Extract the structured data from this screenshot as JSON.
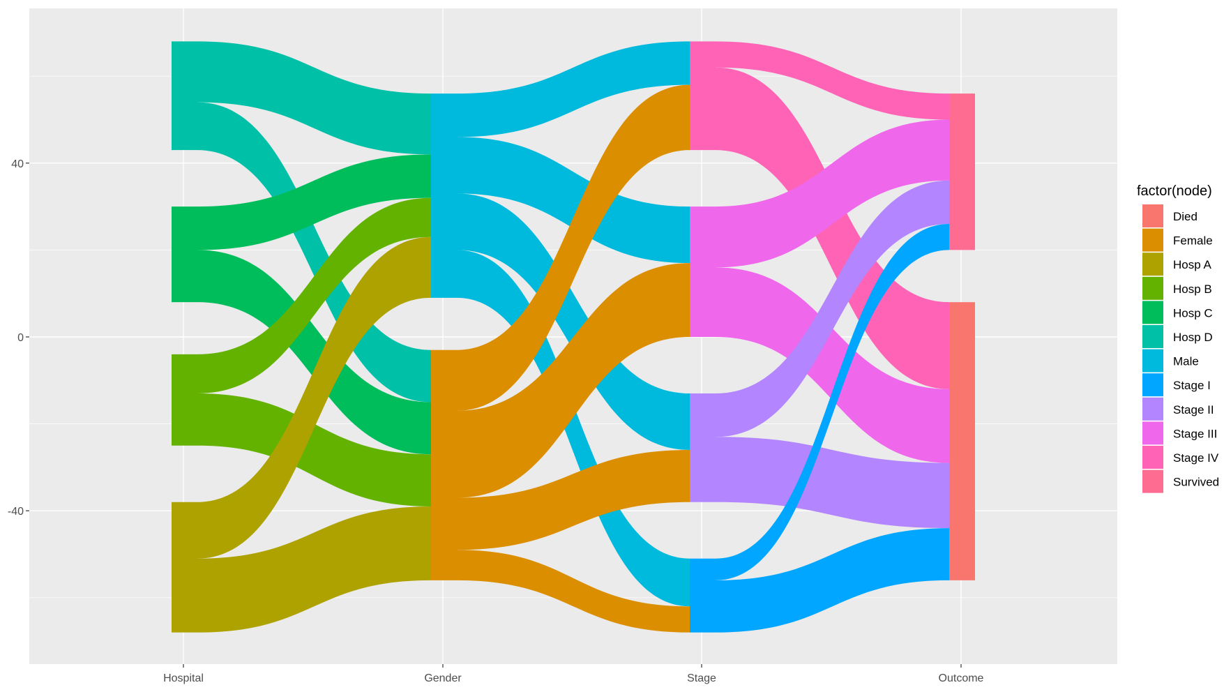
{
  "chart_data": {
    "type": "sankey",
    "axes": [
      "Hospital",
      "Gender",
      "Stage",
      "Outcome"
    ],
    "ylim": [
      -75,
      75
    ],
    "y_ticks": [
      {
        "value": -40,
        "label": "-40"
      },
      {
        "value": 0,
        "label": "0"
      },
      {
        "value": 40,
        "label": "40"
      }
    ],
    "grid": true,
    "legend_title": "factor(node)",
    "legend_position": "right",
    "categories": [
      {
        "name": "Died",
        "color": "#F8766D"
      },
      {
        "name": "Female",
        "color": "#DB8E00"
      },
      {
        "name": "Hosp A",
        "color": "#AEA200"
      },
      {
        "name": "Hosp B",
        "color": "#64B200"
      },
      {
        "name": "Hosp C",
        "color": "#00BD5C"
      },
      {
        "name": "Hosp D",
        "color": "#00C1A7"
      },
      {
        "name": "Male",
        "color": "#00BADE"
      },
      {
        "name": "Stage I",
        "color": "#00A6FF"
      },
      {
        "name": "Stage II",
        "color": "#B385FF"
      },
      {
        "name": "Stage III",
        "color": "#EF67EB"
      },
      {
        "name": "Stage IV",
        "color": "#FF63B6"
      },
      {
        "name": "Survived",
        "color": "#FF6C91"
      }
    ],
    "nodes": [
      {
        "axis": 0,
        "name": "Hosp D",
        "y0": 43,
        "y1": 68
      },
      {
        "axis": 0,
        "name": "Hosp C",
        "y0": 8,
        "y1": 30
      },
      {
        "axis": 0,
        "name": "Hosp B",
        "y0": -25,
        "y1": -4
      },
      {
        "axis": 0,
        "name": "Hosp A",
        "y0": -68,
        "y1": -38
      },
      {
        "axis": 1,
        "name": "Male",
        "y0": 9,
        "y1": 56
      },
      {
        "axis": 1,
        "name": "Female",
        "y0": -56,
        "y1": -3
      },
      {
        "axis": 2,
        "name": "Stage IV",
        "y0": 43,
        "y1": 68
      },
      {
        "axis": 2,
        "name": "Stage III",
        "y0": 0,
        "y1": 30
      },
      {
        "axis": 2,
        "name": "Stage II",
        "y0": -38,
        "y1": -13
      },
      {
        "axis": 2,
        "name": "Stage I",
        "y0": -68,
        "y1": -51
      },
      {
        "axis": 3,
        "name": "Survived",
        "y0": 20,
        "y1": 56
      },
      {
        "axis": 3,
        "name": "Died",
        "y0": -56,
        "y1": 8
      }
    ],
    "flows": [
      {
        "color": "Hosp D",
        "from_axis": 0,
        "from": [
          54,
          68
        ],
        "to": [
          42,
          56
        ]
      },
      {
        "color": "Hosp D",
        "from_axis": 0,
        "from": [
          43,
          54
        ],
        "to": [
          -15,
          -3
        ]
      },
      {
        "color": "Hosp C",
        "from_axis": 0,
        "from": [
          20,
          30
        ],
        "to": [
          32,
          42
        ]
      },
      {
        "color": "Hosp C",
        "from_axis": 0,
        "from": [
          8,
          20
        ],
        "to": [
          -27,
          -15
        ]
      },
      {
        "color": "Hosp B",
        "from_axis": 0,
        "from": [
          -13,
          -4
        ],
        "to": [
          23,
          32
        ]
      },
      {
        "color": "Hosp B",
        "from_axis": 0,
        "from": [
          -25,
          -13
        ],
        "to": [
          -39,
          -27
        ]
      },
      {
        "color": "Hosp A",
        "from_axis": 0,
        "from": [
          -51,
          -38
        ],
        "to": [
          9,
          23
        ]
      },
      {
        "color": "Hosp A",
        "from_axis": 0,
        "from": [
          -68,
          -51
        ],
        "to": [
          -56,
          -39
        ]
      },
      {
        "color": "Male",
        "from_axis": 1,
        "from": [
          46,
          56
        ],
        "to": [
          58,
          68
        ]
      },
      {
        "color": "Male",
        "from_axis": 1,
        "from": [
          33,
          46
        ],
        "to": [
          17,
          30
        ]
      },
      {
        "color": "Male",
        "from_axis": 1,
        "from": [
          20,
          33
        ],
        "to": [
          -26,
          -13
        ]
      },
      {
        "color": "Male",
        "from_axis": 1,
        "from": [
          9,
          20
        ],
        "to": [
          -62,
          -51
        ]
      },
      {
        "color": "Female",
        "from_axis": 1,
        "from": [
          -17,
          -3
        ],
        "to": [
          43,
          58
        ]
      },
      {
        "color": "Female",
        "from_axis": 1,
        "from": [
          -37,
          -17
        ],
        "to": [
          0,
          17
        ]
      },
      {
        "color": "Female",
        "from_axis": 1,
        "from": [
          -49,
          -37
        ],
        "to": [
          -38,
          -26
        ]
      },
      {
        "color": "Female",
        "from_axis": 1,
        "from": [
          -56,
          -49
        ],
        "to": [
          -68,
          -62
        ]
      },
      {
        "color": "Stage IV",
        "from_axis": 2,
        "from": [
          62,
          68
        ],
        "to": [
          50,
          56
        ]
      },
      {
        "color": "Stage IV",
        "from_axis": 2,
        "from": [
          43,
          62
        ],
        "to": [
          -12,
          8
        ]
      },
      {
        "color": "Stage III",
        "from_axis": 2,
        "from": [
          16,
          30
        ],
        "to": [
          36,
          50
        ]
      },
      {
        "color": "Stage III",
        "from_axis": 2,
        "from": [
          0,
          16
        ],
        "to": [
          -29,
          -12
        ]
      },
      {
        "color": "Stage II",
        "from_axis": 2,
        "from": [
          -23,
          -13
        ],
        "to": [
          26,
          36
        ]
      },
      {
        "color": "Stage II",
        "from_axis": 2,
        "from": [
          -38,
          -23
        ],
        "to": [
          -44,
          -29
        ]
      },
      {
        "color": "Stage I",
        "from_axis": 2,
        "from": [
          -56,
          -51
        ],
        "to": [
          20,
          26
        ]
      },
      {
        "color": "Stage I",
        "from_axis": 2,
        "from": [
          -68,
          -56
        ],
        "to": [
          -56,
          -44
        ]
      }
    ]
  }
}
